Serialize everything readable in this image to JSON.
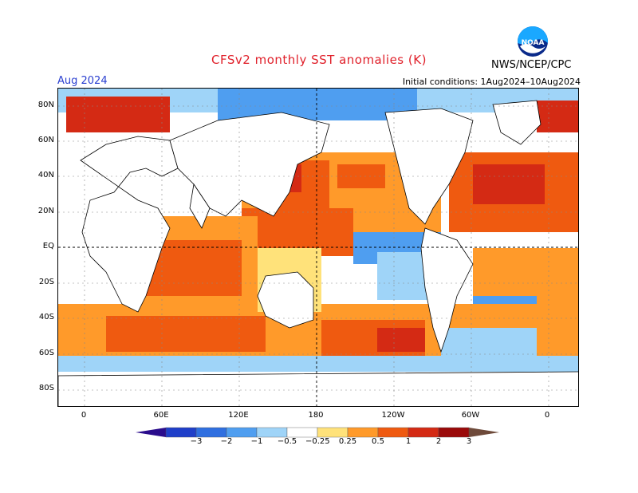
{
  "header": {
    "title": "CFSv2 monthly SST anomalies (K)",
    "month": "Aug 2024",
    "initial_conditions": "Initial conditions: 1Aug2024–10Aug2024",
    "agency": "NWS/NCEP/CPC",
    "logo_text": "NOAA"
  },
  "axes": {
    "lat_labels": [
      "80N",
      "60N",
      "40N",
      "20N",
      "EQ",
      "20S",
      "40S",
      "60S",
      "80S"
    ],
    "lon_labels": [
      "0",
      "60E",
      "120E",
      "180",
      "120W",
      "60W",
      "0"
    ]
  },
  "colorbar": {
    "labels": [
      "−3",
      "−2",
      "−1",
      "−0.5",
      "−0.25",
      "0.25",
      "0.5",
      "1",
      "2",
      "3"
    ],
    "colors": [
      "#2a0c8c",
      "#1f3fc9",
      "#2f6fe0",
      "#4f9ef0",
      "#9fd4f8",
      "#ffffff",
      "#ffe27a",
      "#ff9a2a",
      "#ef5a10",
      "#d42a14",
      "#9a0a0a",
      "#6e4a3a"
    ]
  },
  "map_colors": {
    "ocean_warm_strong": "#d42a14",
    "ocean_warm": "#ef5a10",
    "ocean_mild": "#ff9a2a",
    "ocean_slight": "#ffe27a",
    "ocean_cool": "#4f9ef0",
    "ocean_cool_slight": "#9fd4f8",
    "land": "#ffffff",
    "coast": "#000000"
  }
}
